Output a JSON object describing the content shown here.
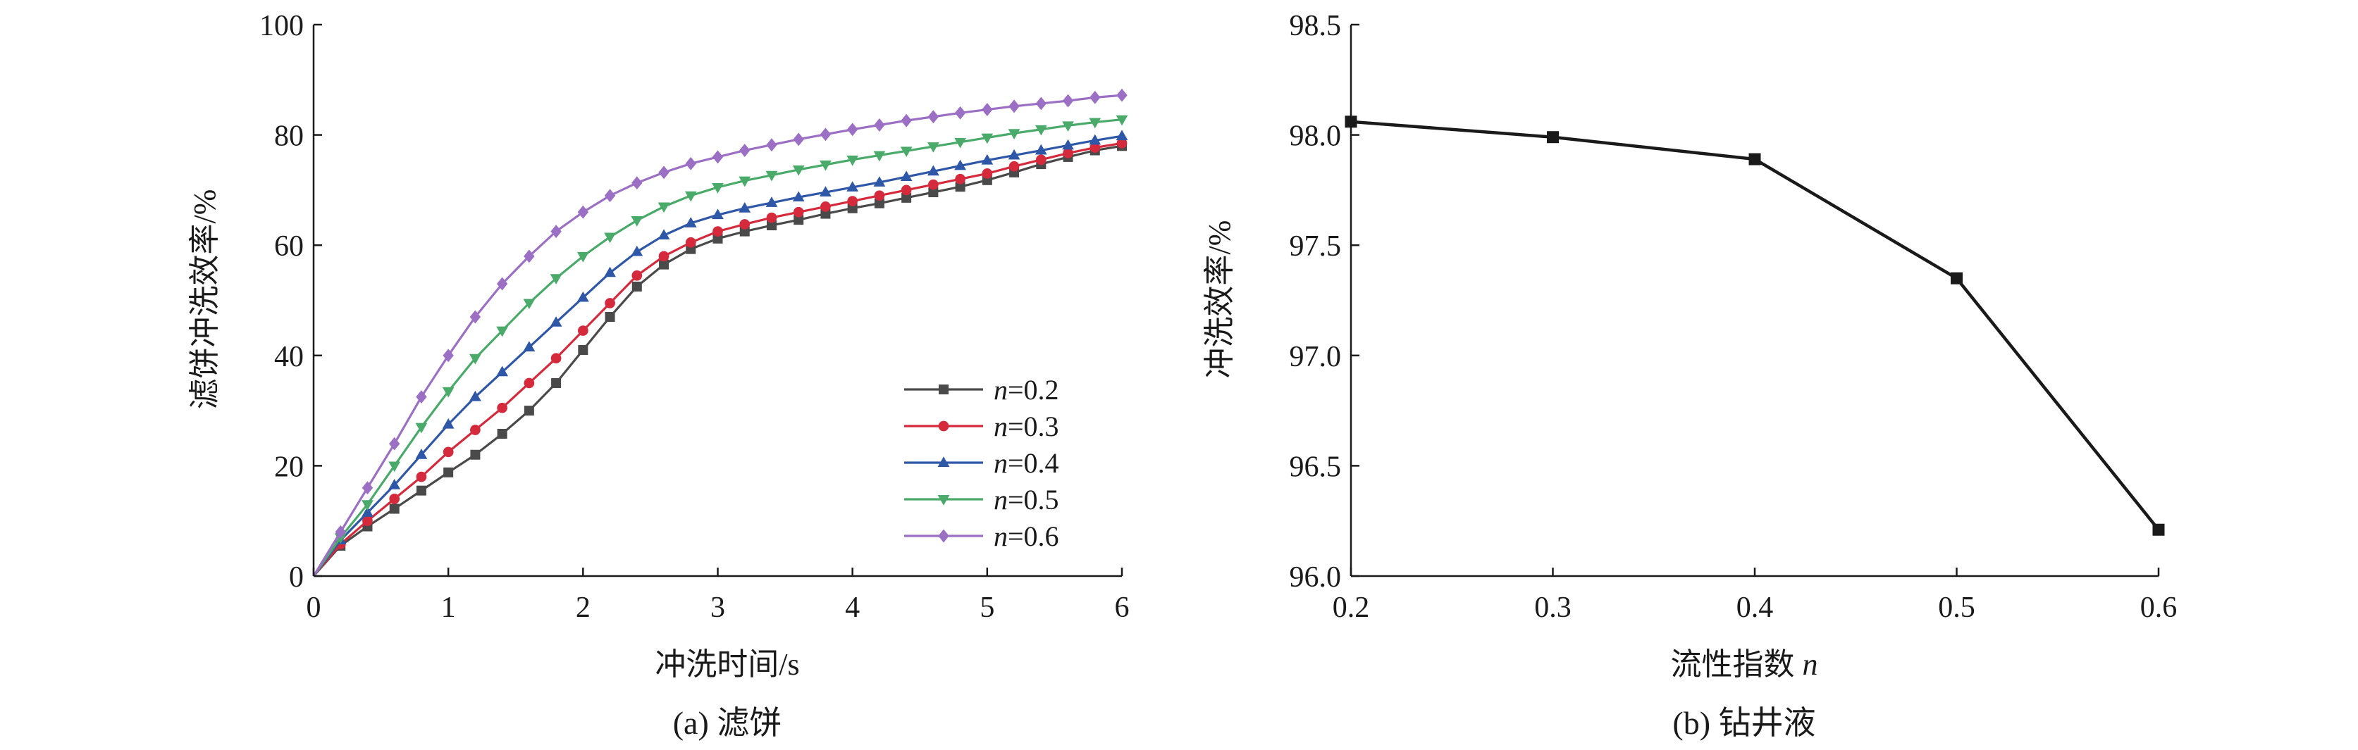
{
  "chart_data": [
    {
      "type": "line",
      "caption": "(a) 滤饼",
      "xlabel": "冲洗时间/s",
      "ylabel": "滤饼冲洗效率/%",
      "xlim": [
        0,
        6
      ],
      "ylim": [
        0,
        100
      ],
      "xticks": [
        "0",
        "1",
        "2",
        "3",
        "4",
        "5",
        "6"
      ],
      "yticks": [
        "0",
        "20",
        "40",
        "60",
        "80",
        "100"
      ],
      "grid": false,
      "legend_position": "center-right",
      "x": [
        0,
        0.2,
        0.4,
        0.6,
        0.8,
        1.0,
        1.2,
        1.4,
        1.6,
        1.8,
        2.0,
        2.2,
        2.4,
        2.6,
        2.8,
        3.0,
        3.2,
        3.4,
        3.6,
        3.8,
        4.0,
        4.2,
        4.4,
        4.6,
        4.8,
        5.0,
        5.2,
        5.4,
        5.6,
        5.8,
        6.0
      ],
      "series": [
        {
          "name_prefix": "n",
          "name_suffix": "=0.2",
          "color": "#4a4a4a",
          "marker": "square",
          "values": [
            0,
            5.5,
            9,
            12.2,
            15.5,
            18.8,
            22,
            25.8,
            30,
            35,
            41,
            47,
            52.5,
            56.5,
            59.3,
            61.2,
            62.5,
            63.6,
            64.6,
            65.7,
            66.7,
            67.6,
            68.6,
            69.6,
            70.6,
            71.8,
            73.2,
            74.7,
            76,
            77.2,
            78
          ]
        },
        {
          "name_prefix": "n",
          "name_suffix": "=0.3",
          "color": "#d42a3c",
          "marker": "circle",
          "values": [
            0,
            5.8,
            10,
            14,
            18,
            22.5,
            26.5,
            30.5,
            35,
            39.5,
            44.5,
            49.5,
            54.5,
            58,
            60.5,
            62.5,
            63.8,
            65,
            66,
            67,
            68,
            69,
            70,
            71,
            72,
            73,
            74.3,
            75.5,
            76.7,
            77.7,
            78.5
          ]
        },
        {
          "name_prefix": "n",
          "name_suffix": "=0.4",
          "color": "#2f57a7",
          "marker": "triangle-up",
          "values": [
            0,
            6.5,
            11.5,
            16.5,
            22,
            27.5,
            32.5,
            37,
            41.5,
            46,
            50.5,
            55,
            58.8,
            61.8,
            64,
            65.5,
            66.7,
            67.7,
            68.7,
            69.6,
            70.5,
            71.4,
            72.4,
            73.4,
            74.4,
            75.4,
            76.3,
            77.2,
            78.1,
            79,
            79.8
          ]
        },
        {
          "name_prefix": "n",
          "name_suffix": "=0.5",
          "color": "#4aaa6a",
          "marker": "triangle-down",
          "values": [
            0,
            7,
            13,
            20,
            27,
            33.5,
            39.5,
            44.5,
            49.5,
            54,
            58,
            61.5,
            64.5,
            67,
            69,
            70.5,
            71.7,
            72.7,
            73.7,
            74.6,
            75.5,
            76.3,
            77.1,
            77.9,
            78.7,
            79.5,
            80.3,
            81,
            81.7,
            82.3,
            82.8
          ]
        },
        {
          "name_prefix": "n",
          "name_suffix": "=0.6",
          "color": "#9b6fc4",
          "marker": "diamond",
          "values": [
            0,
            8,
            16,
            24,
            32.5,
            40,
            47,
            53,
            58,
            62.5,
            66,
            69,
            71.3,
            73.2,
            74.8,
            76,
            77.2,
            78.2,
            79.2,
            80.1,
            81,
            81.8,
            82.6,
            83.3,
            84,
            84.6,
            85.2,
            85.7,
            86.2,
            86.8,
            87.2
          ]
        }
      ]
    },
    {
      "type": "line",
      "caption": "(b) 钻井液",
      "xlabel_main": "流性指数 ",
      "xlabel_var": "n",
      "ylabel": "冲洗效率/%",
      "xlim": [
        0.2,
        0.6
      ],
      "ylim": [
        96.0,
        98.5
      ],
      "xticks": [
        "0.2",
        "0.3",
        "0.4",
        "0.5",
        "0.6"
      ],
      "yticks": [
        "96.0",
        "96.5",
        "97.0",
        "97.5",
        "98.0",
        "98.5"
      ],
      "grid": false,
      "x": [
        0.2,
        0.3,
        0.4,
        0.5,
        0.6
      ],
      "series": [
        {
          "color": "#1a1a1a",
          "marker": "square",
          "values": [
            98.06,
            97.99,
            97.89,
            97.35,
            96.21
          ]
        }
      ]
    }
  ]
}
